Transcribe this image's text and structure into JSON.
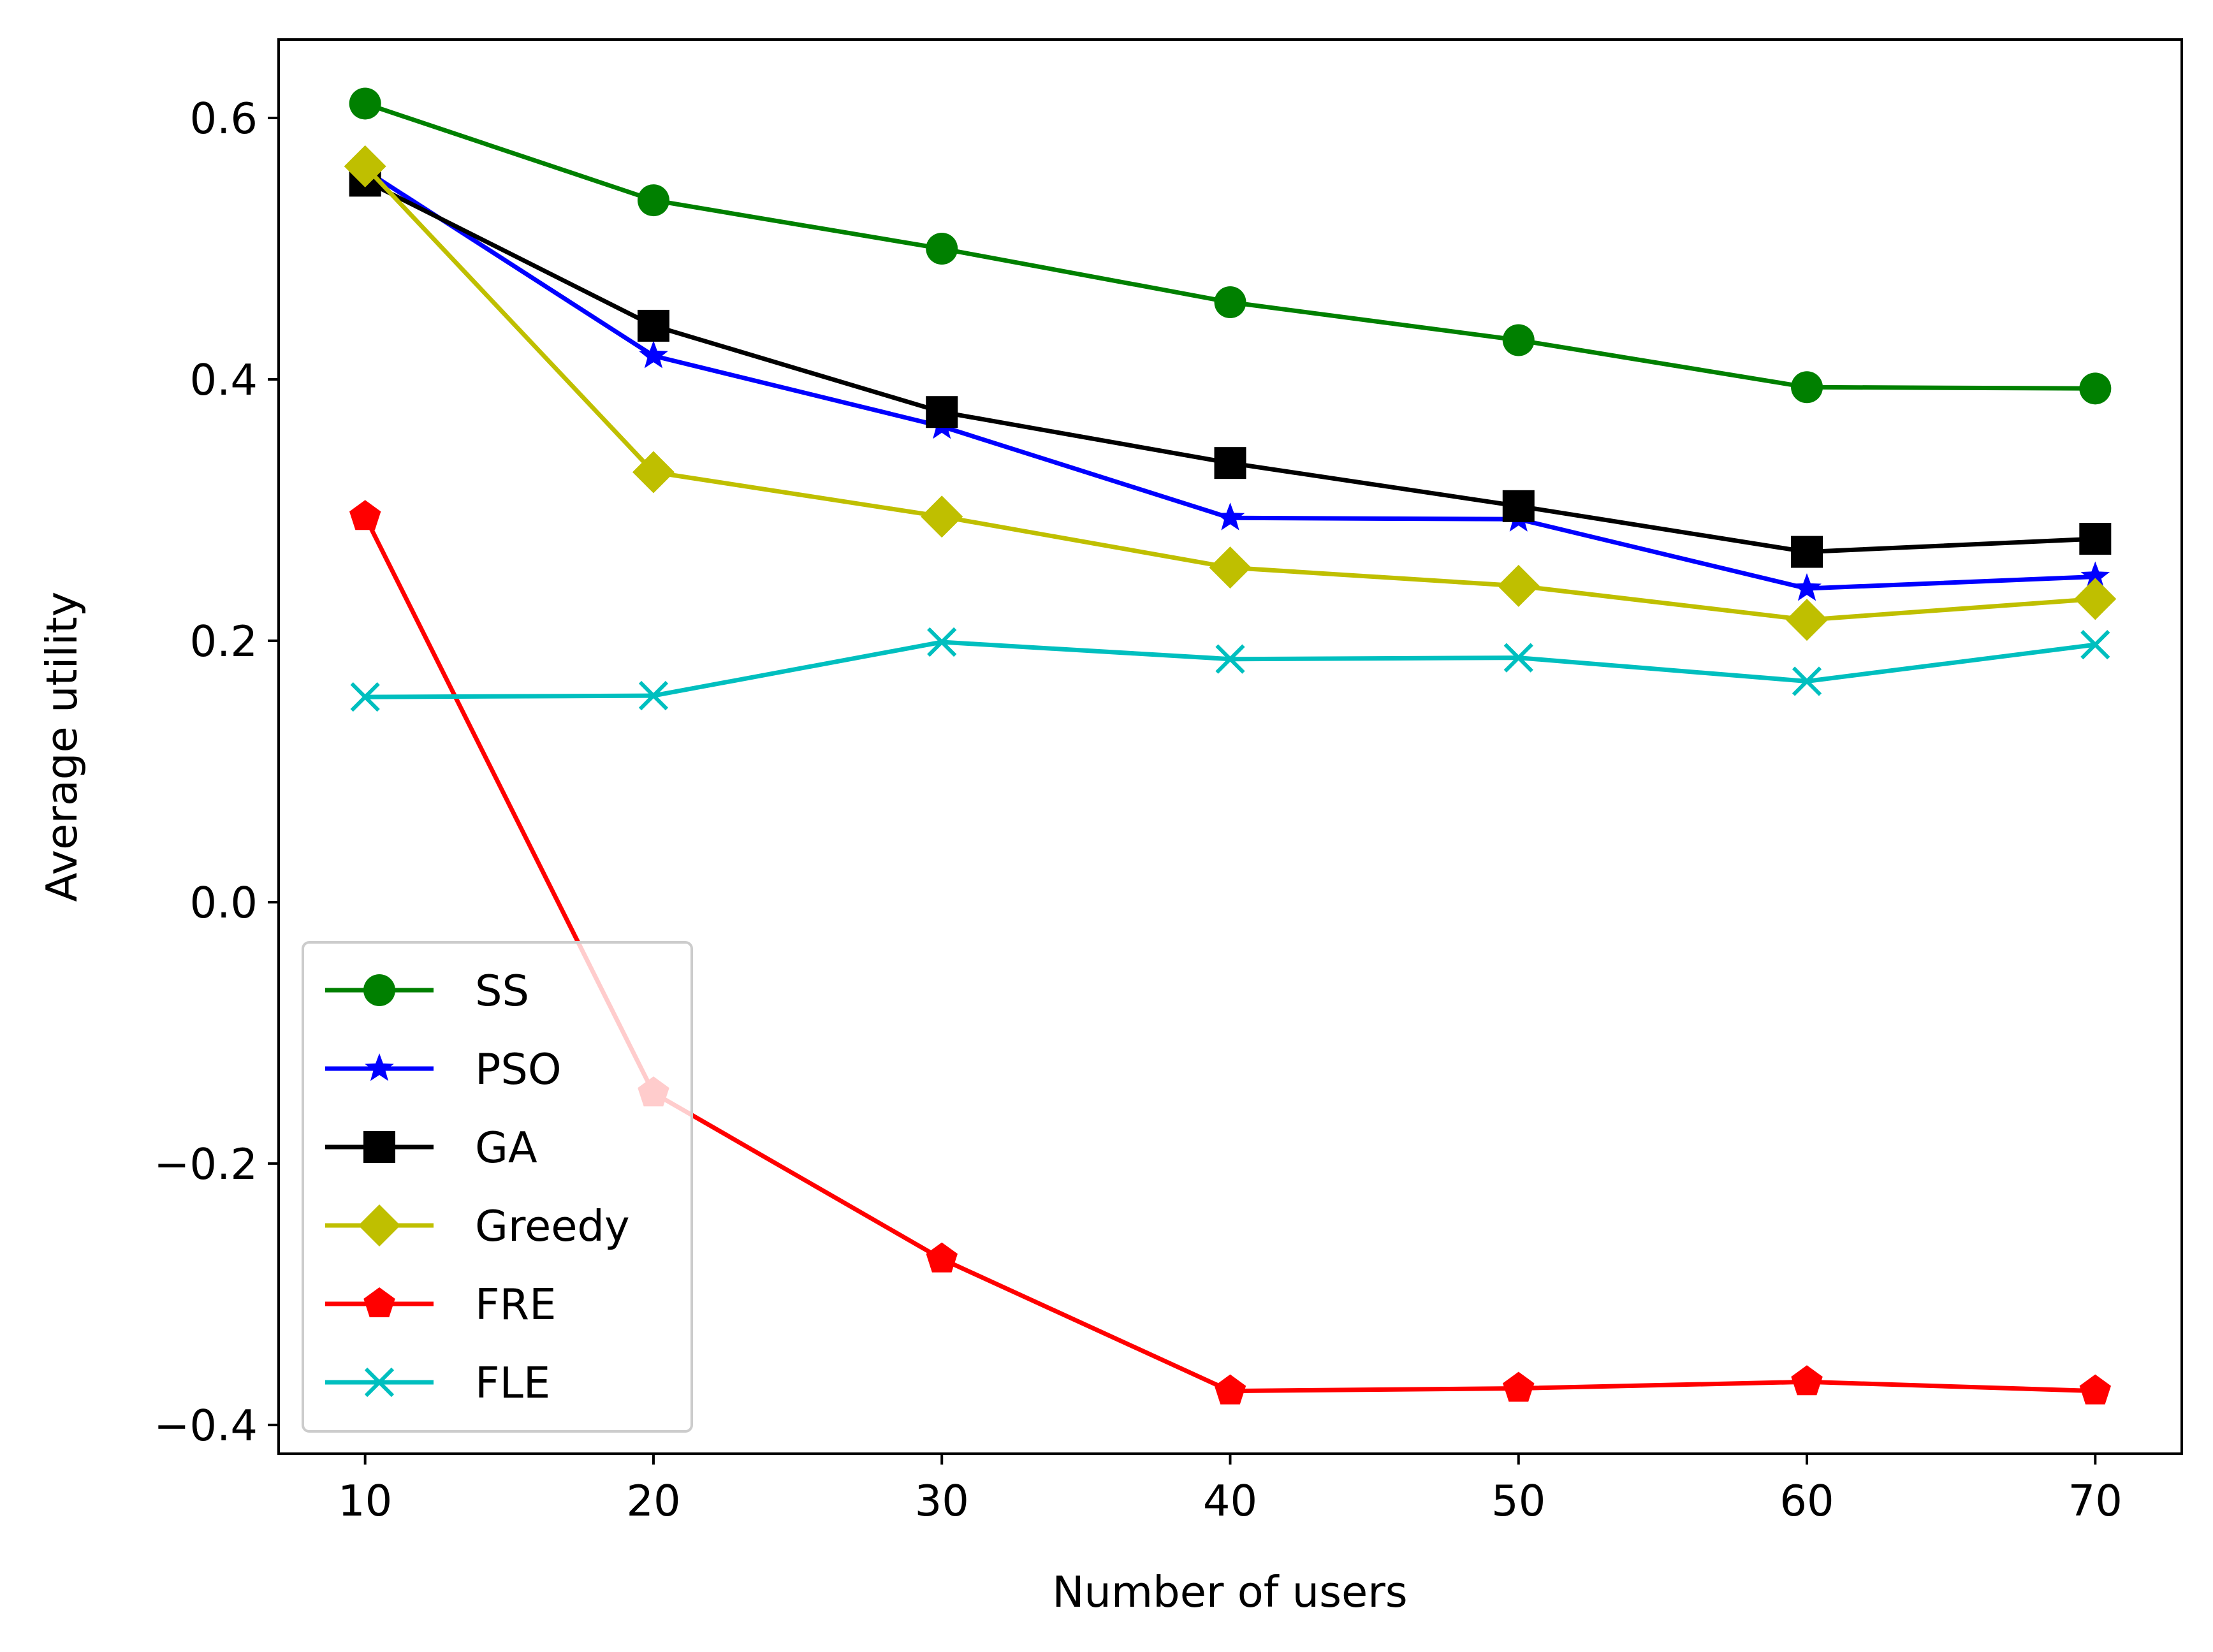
{
  "chart_data": {
    "type": "line",
    "title": "",
    "xlabel": "Number of users",
    "ylabel": "Average utility",
    "x": [
      10,
      20,
      30,
      40,
      50,
      60,
      70
    ],
    "xlim": [
      7,
      73
    ],
    "ylim": [
      -0.422,
      0.66
    ],
    "xticks": [
      10,
      20,
      30,
      40,
      50,
      60,
      70
    ],
    "xtick_labels": [
      "10",
      "20",
      "30",
      "40",
      "50",
      "60",
      "70"
    ],
    "yticks": [
      -0.4,
      -0.2,
      0.0,
      0.2,
      0.4,
      0.6
    ],
    "ytick_labels": [
      "−0.4",
      "−0.2",
      "0.0",
      "0.2",
      "0.4",
      "0.6"
    ],
    "grid": false,
    "legend_position": "lower-left",
    "series": [
      {
        "name": "SS",
        "color": "#008000",
        "marker": "circle",
        "values": [
          0.611,
          0.537,
          0.5,
          0.459,
          0.43,
          0.394,
          0.393
        ]
      },
      {
        "name": "PSO",
        "color": "#0000ff",
        "marker": "star",
        "values": [
          0.56,
          0.418,
          0.364,
          0.294,
          0.293,
          0.24,
          0.249
        ]
      },
      {
        "name": "GA",
        "color": "#000000",
        "marker": "square",
        "values": [
          0.552,
          0.441,
          0.375,
          0.336,
          0.303,
          0.268,
          0.278
        ]
      },
      {
        "name": "Greedy",
        "color": "#bfbf00",
        "marker": "diamond",
        "values": [
          0.563,
          0.329,
          0.295,
          0.256,
          0.242,
          0.216,
          0.232
        ]
      },
      {
        "name": "FRE",
        "color": "#ff0000",
        "marker": "pentagon",
        "values": [
          0.295,
          -0.146,
          -0.273,
          -0.374,
          -0.372,
          -0.367,
          -0.374
        ]
      },
      {
        "name": "FLE",
        "color": "#00bfbf",
        "marker": "x",
        "values": [
          0.157,
          0.158,
          0.199,
          0.186,
          0.187,
          0.169,
          0.197
        ]
      }
    ]
  }
}
